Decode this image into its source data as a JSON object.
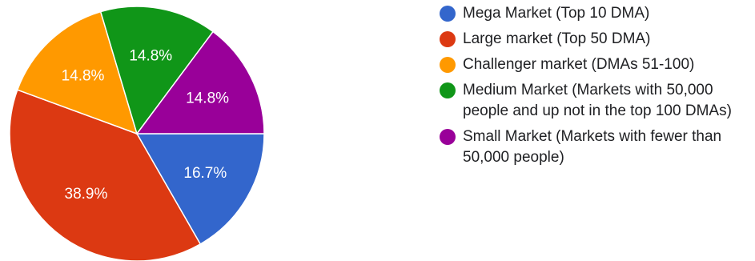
{
  "chart_data": {
    "type": "pie",
    "slices": [
      {
        "label": "Mega Market (Top 10 DMA)",
        "value": 16.7,
        "display": "16.7%",
        "color": "#3366cc"
      },
      {
        "label": "Large market (Top 50 DMA)",
        "value": 38.9,
        "display": "38.9%",
        "color": "#dc3912"
      },
      {
        "label": "Challenger market (DMAs 51-100)",
        "value": 14.8,
        "display": "14.8%",
        "color": "#ff9900"
      },
      {
        "label": "Medium Market (Markets with 50,000 people and up not in the top 100 DMAs)",
        "value": 14.8,
        "display": "14.8%",
        "color": "#109618"
      },
      {
        "label": "Small Market (Markets with fewer than 50,000 people)",
        "value": 14.8,
        "display": "14.8%",
        "color": "#990099"
      }
    ],
    "legend_position": "right",
    "start_angle": "90deg clockwise from top (3 o'clock)",
    "direction": "clockwise"
  }
}
